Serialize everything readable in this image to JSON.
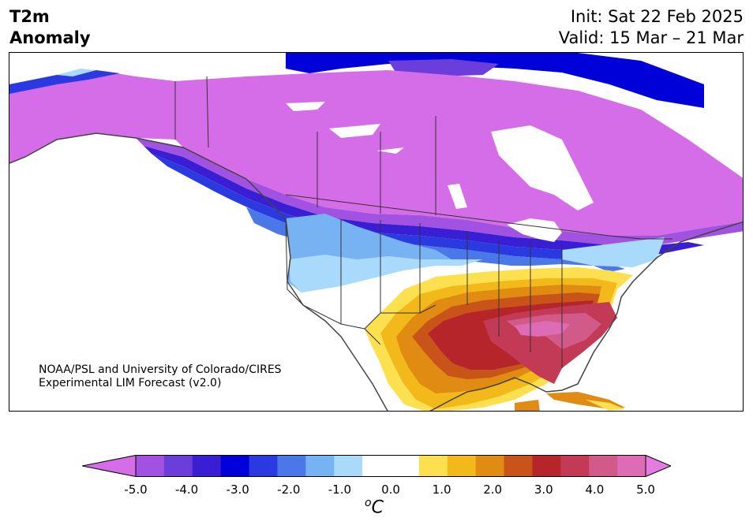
{
  "header": {
    "title_line1": "T2m",
    "title_line2": "Anomaly",
    "init": "Init: Sat 22 Feb 2025",
    "valid": "Valid: 15 Mar – 21 Mar"
  },
  "credit": {
    "line1": "NOAA/PSL and University of Colorado/CIRES",
    "line2": "Experimental LIM Forecast (v2.0)"
  },
  "colorbar": {
    "ticks": [
      "-5.0",
      "-4.0",
      "-3.0",
      "-2.0",
      "-1.0",
      "0.0",
      "1.0",
      "2.0",
      "3.0",
      "4.0",
      "5.0"
    ],
    "units_base": "C",
    "units_sup": "o",
    "colors": [
      "#d66de8",
      "#a152e0",
      "#6b3ddb",
      "#3a1ed4",
      "#0000d8",
      "#2a3ae0",
      "#4a78e8",
      "#77b2f2",
      "#a9dafc",
      "#ffffff",
      "#ffffff",
      "#fde04f",
      "#f3b81a",
      "#e08c12",
      "#c9541a",
      "#b5252a",
      "#c23a56",
      "#d25a88",
      "#dd6bb5",
      "#e57adf"
    ]
  },
  "map": {
    "region": "North America",
    "cold_anomaly_color": "#d66de8",
    "warm_anomaly_color": "#b5252a"
  }
}
